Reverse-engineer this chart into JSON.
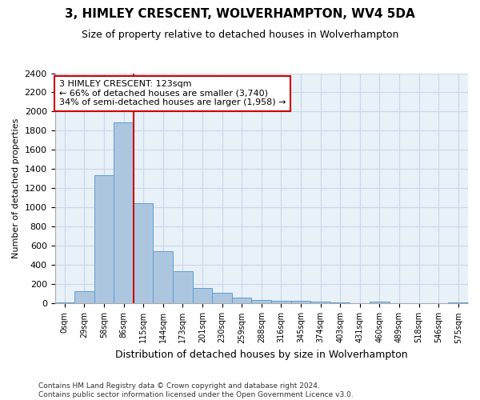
{
  "title": "3, HIMLEY CRESCENT, WOLVERHAMPTON, WV4 5DA",
  "subtitle": "Size of property relative to detached houses in Wolverhampton",
  "xlabel": "Distribution of detached houses by size in Wolverhampton",
  "ylabel": "Number of detached properties",
  "footer_line1": "Contains HM Land Registry data © Crown copyright and database right 2024.",
  "footer_line2": "Contains public sector information licensed under the Open Government Licence v3.0.",
  "bar_labels": [
    "0sqm",
    "29sqm",
    "58sqm",
    "86sqm",
    "115sqm",
    "144sqm",
    "173sqm",
    "201sqm",
    "230sqm",
    "259sqm",
    "288sqm",
    "316sqm",
    "345sqm",
    "374sqm",
    "403sqm",
    "431sqm",
    "460sqm",
    "489sqm",
    "518sqm",
    "546sqm",
    "575sqm"
  ],
  "bar_values": [
    15,
    125,
    1340,
    1890,
    1045,
    545,
    338,
    165,
    110,
    62,
    40,
    30,
    25,
    18,
    8,
    0,
    20,
    0,
    0,
    0,
    15
  ],
  "bar_color": "#adc6e0",
  "bar_edge_color": "#5a9fd4",
  "grid_color": "#c8d8e8",
  "background_color": "#ffffff",
  "plot_bg_color": "#e8f0f8",
  "annotation_line1": "3 HIMLEY CRESCENT: 123sqm",
  "annotation_line2": "← 66% of detached houses are smaller (3,740)",
  "annotation_line3": "34% of semi-detached houses are larger (1,958) →",
  "annotation_box_color": "#ffffff",
  "annotation_box_edge_color": "#cc0000",
  "vline_color": "#cc0000",
  "ylim": [
    0,
    2400
  ],
  "yticks": [
    0,
    200,
    400,
    600,
    800,
    1000,
    1200,
    1400,
    1600,
    1800,
    2000,
    2200,
    2400
  ]
}
